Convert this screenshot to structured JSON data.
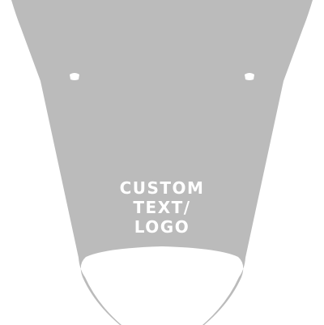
{
  "decal": {
    "fill_color": "#bbbbbb",
    "background_color": "#ffffff",
    "text_color": "#ffffff",
    "text_lines": [
      "CUSTOM",
      "TEXT/",
      "LOGO"
    ]
  }
}
